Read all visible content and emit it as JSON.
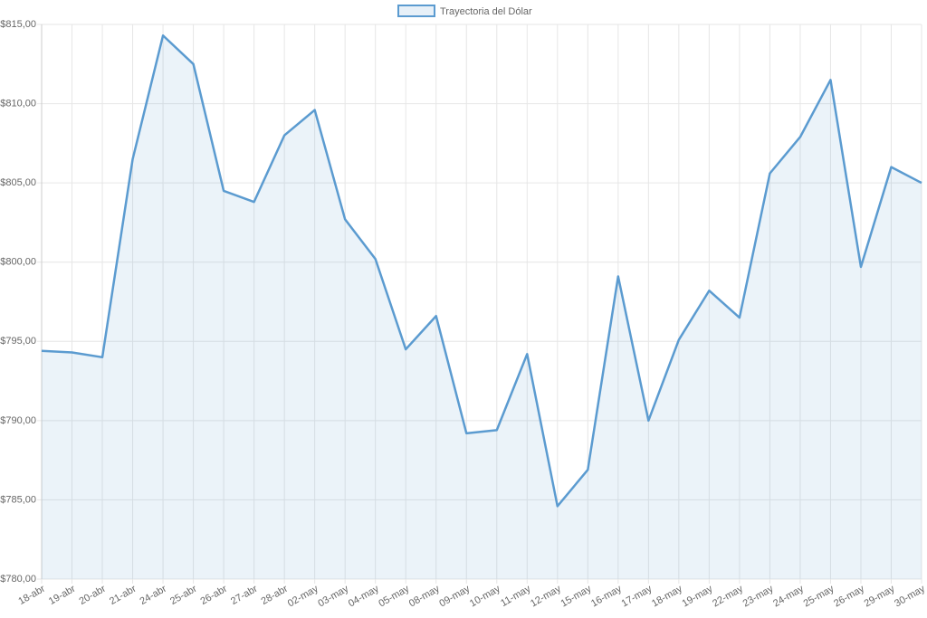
{
  "chart_data": {
    "type": "line",
    "categories": [
      "18-abr",
      "19-abr",
      "20-abr",
      "21-abr",
      "24-abr",
      "25-abr",
      "26-abr",
      "27-abr",
      "28-abr",
      "02-may",
      "03-may",
      "04-may",
      "05-may",
      "08-may",
      "09-may",
      "10-may",
      "11-may",
      "12-may",
      "15-may",
      "16-may",
      "17-may",
      "18-may",
      "19-may",
      "22-may",
      "23-may",
      "24-may",
      "25-may",
      "26-may",
      "29-may",
      "30-may"
    ],
    "series": [
      {
        "name": "Trayectoria del Dólar",
        "color": "#5b9bd0",
        "values": [
          794.4,
          794.3,
          794.0,
          806.5,
          814.3,
          812.5,
          804.5,
          803.8,
          808.0,
          809.6,
          802.7,
          800.2,
          794.5,
          796.6,
          789.2,
          789.4,
          794.2,
          784.6,
          786.9,
          799.1,
          790.0,
          795.1,
          798.2,
          796.5,
          805.6,
          807.9,
          811.5,
          799.7,
          806.0,
          805.0
        ]
      }
    ],
    "ylim": [
      780,
      815
    ],
    "yticks": [
      {
        "value": 780,
        "label": "$780,00"
      },
      {
        "value": 785,
        "label": "$785,00"
      },
      {
        "value": 790,
        "label": "$790,00"
      },
      {
        "value": 795,
        "label": "$795,00"
      },
      {
        "value": 800,
        "label": "$800,00"
      },
      {
        "value": 805,
        "label": "$805,00"
      },
      {
        "value": 810,
        "label": "$810,00"
      },
      {
        "value": 815,
        "label": "$815,00"
      }
    ],
    "grid": true,
    "legend": "top"
  }
}
